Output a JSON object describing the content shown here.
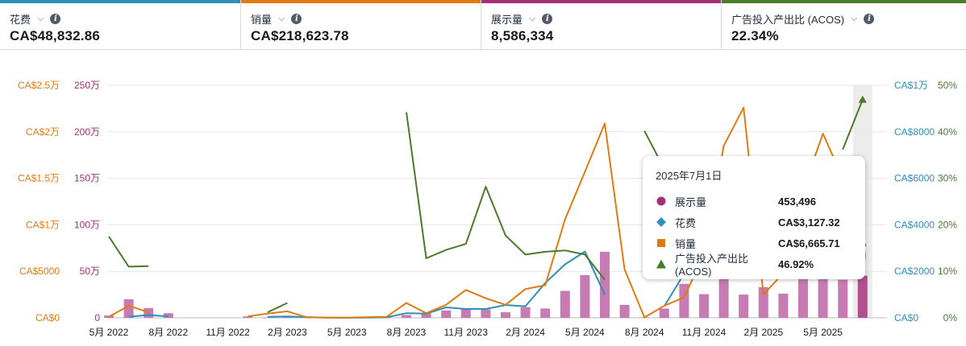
{
  "metrics": [
    {
      "label": "花费",
      "value": "CA$48,832.86",
      "color": "#2e8fb8"
    },
    {
      "label": "销量",
      "value": "CA$218,623.78",
      "color": "#e07b12"
    },
    {
      "label": "展示量",
      "value": "8,586,334",
      "color": "#a4307a"
    },
    {
      "label": "广告投入产出比 (ACOS)",
      "value": "22.34%",
      "color": "#4a7a2c"
    }
  ],
  "tooltip": {
    "date": "2025年7月1日",
    "rows": [
      {
        "name": "展示量",
        "value": "453,496",
        "marker": "circle",
        "color": "#a4307a"
      },
      {
        "name": "花费",
        "value": "CA$3,127.32",
        "marker": "diamond",
        "color": "#2e8fb8"
      },
      {
        "name": "销量",
        "value": "CA$6,665.71",
        "marker": "square",
        "color": "#e07b12"
      },
      {
        "name": "广告投入产出比 (ACOS)",
        "value": "46.92%",
        "marker": "triangle",
        "color": "#4a7a2c"
      }
    ]
  },
  "chart_data": {
    "type": "bar+line",
    "x": [
      "2022-05",
      "2022-06",
      "2022-07",
      "2022-08",
      "2022-09",
      "2022-10",
      "2022-11",
      "2022-12",
      "2023-01",
      "2023-02",
      "2023-03",
      "2023-04",
      "2023-05",
      "2023-06",
      "2023-07",
      "2023-08",
      "2023-09",
      "2023-10",
      "2023-11",
      "2023-12",
      "2024-01",
      "2024-02",
      "2024-03",
      "2024-04",
      "2024-05",
      "2024-06",
      "2024-07",
      "2024-08",
      "2024-09",
      "2024-10",
      "2024-11",
      "2024-12",
      "2025-01",
      "2025-02",
      "2025-03",
      "2025-04",
      "2025-05",
      "2025-06",
      "2025-07"
    ],
    "x_tick_labels": [
      "5月 2022",
      "8月 2022",
      "11月 2022",
      "2月 2023",
      "5月 2023",
      "8月 2023",
      "11月 2023",
      "2月 2024",
      "5月 2024",
      "8月 2024",
      "11月 2024",
      "2月 2025",
      "5月 2025"
    ],
    "axes": {
      "sales_axis": {
        "ticks": [
          "CA$0",
          "CA$5000",
          "CA$1万",
          "CA$1.5万",
          "CA$2万",
          "CA$2.5万"
        ],
        "ylim": [
          0,
          25000
        ],
        "color": "#e07b12"
      },
      "impressions_axis": {
        "ticks": [
          "0",
          "50万",
          "100万",
          "150万",
          "200万",
          "250万"
        ],
        "ylim": [
          0,
          2500000
        ],
        "color": "#a4307a"
      },
      "spend_axis": {
        "ticks": [
          "CA$0",
          "CA$2000",
          "CA$4000",
          "CA$6000",
          "CA$8000",
          "CA$1万"
        ],
        "ylim": [
          0,
          10000
        ],
        "color": "#2e8fb8"
      },
      "acos_axis": {
        "ticks": [
          "0%",
          "10%",
          "20%",
          "30%",
          "40%",
          "50%"
        ],
        "ylim": [
          0,
          50
        ],
        "color": "#4a7a2c"
      }
    },
    "series": [
      {
        "name": "展示量",
        "kind": "bar",
        "axis": "impressions_axis",
        "color": "#c67cb2",
        "values": [
          25000,
          200000,
          105000,
          50000,
          null,
          null,
          null,
          15000,
          5000,
          18000,
          5000,
          3000,
          2000,
          3000,
          5000,
          30000,
          50000,
          80000,
          95000,
          90000,
          60000,
          115000,
          100000,
          290000,
          460000,
          710000,
          140000,
          5000,
          100000,
          365000,
          255000,
          520000,
          250000,
          330000,
          260000,
          420000,
          460000,
          410000,
          453496
        ]
      },
      {
        "name": "花费",
        "kind": "line",
        "axis": "spend_axis",
        "color": "#2e8fb8",
        "values": [
          null,
          50,
          120,
          60,
          null,
          null,
          null,
          null,
          40,
          60,
          30,
          10,
          5,
          10,
          20,
          200,
          180,
          450,
          380,
          380,
          550,
          500,
          1500,
          2300,
          2850,
          1000,
          null,
          null,
          500,
          1900,
          2500,
          4200,
          3000,
          2500,
          3000,
          3200,
          4200,
          5400,
          3127.32
        ]
      },
      {
        "name": "销量",
        "kind": "line",
        "axis": "sales_axis",
        "color": "#e07b12",
        "values": [
          100,
          1300,
          600,
          null,
          null,
          50,
          null,
          150,
          450,
          700,
          50,
          30,
          20,
          80,
          100,
          1600,
          500,
          1400,
          3000,
          2100,
          1400,
          3100,
          3500,
          10600,
          15700,
          20900,
          5200,
          40,
          1300,
          2200,
          6800,
          18500,
          22600,
          2500,
          4800,
          13800,
          19800,
          15000,
          6665.71
        ]
      },
      {
        "name": "广告投入产出比 (ACOS)",
        "kind": "line",
        "axis": "acos_axis",
        "color": "#4a7a2c",
        "values": [
          17.5,
          11,
          11.1,
          null,
          null,
          null,
          33.5,
          null,
          1.2,
          3.2,
          null,
          null,
          null,
          null,
          null,
          44.2,
          12.8,
          14.6,
          15.9,
          28.2,
          17.7,
          13.6,
          14.2,
          14.5,
          13.6,
          8.2,
          null,
          40.2,
          32,
          30.1,
          28,
          null,
          null,
          null,
          null,
          null,
          null,
          36.2,
          46.92
        ]
      }
    ],
    "highlight": "2025-07",
    "grid": true
  }
}
